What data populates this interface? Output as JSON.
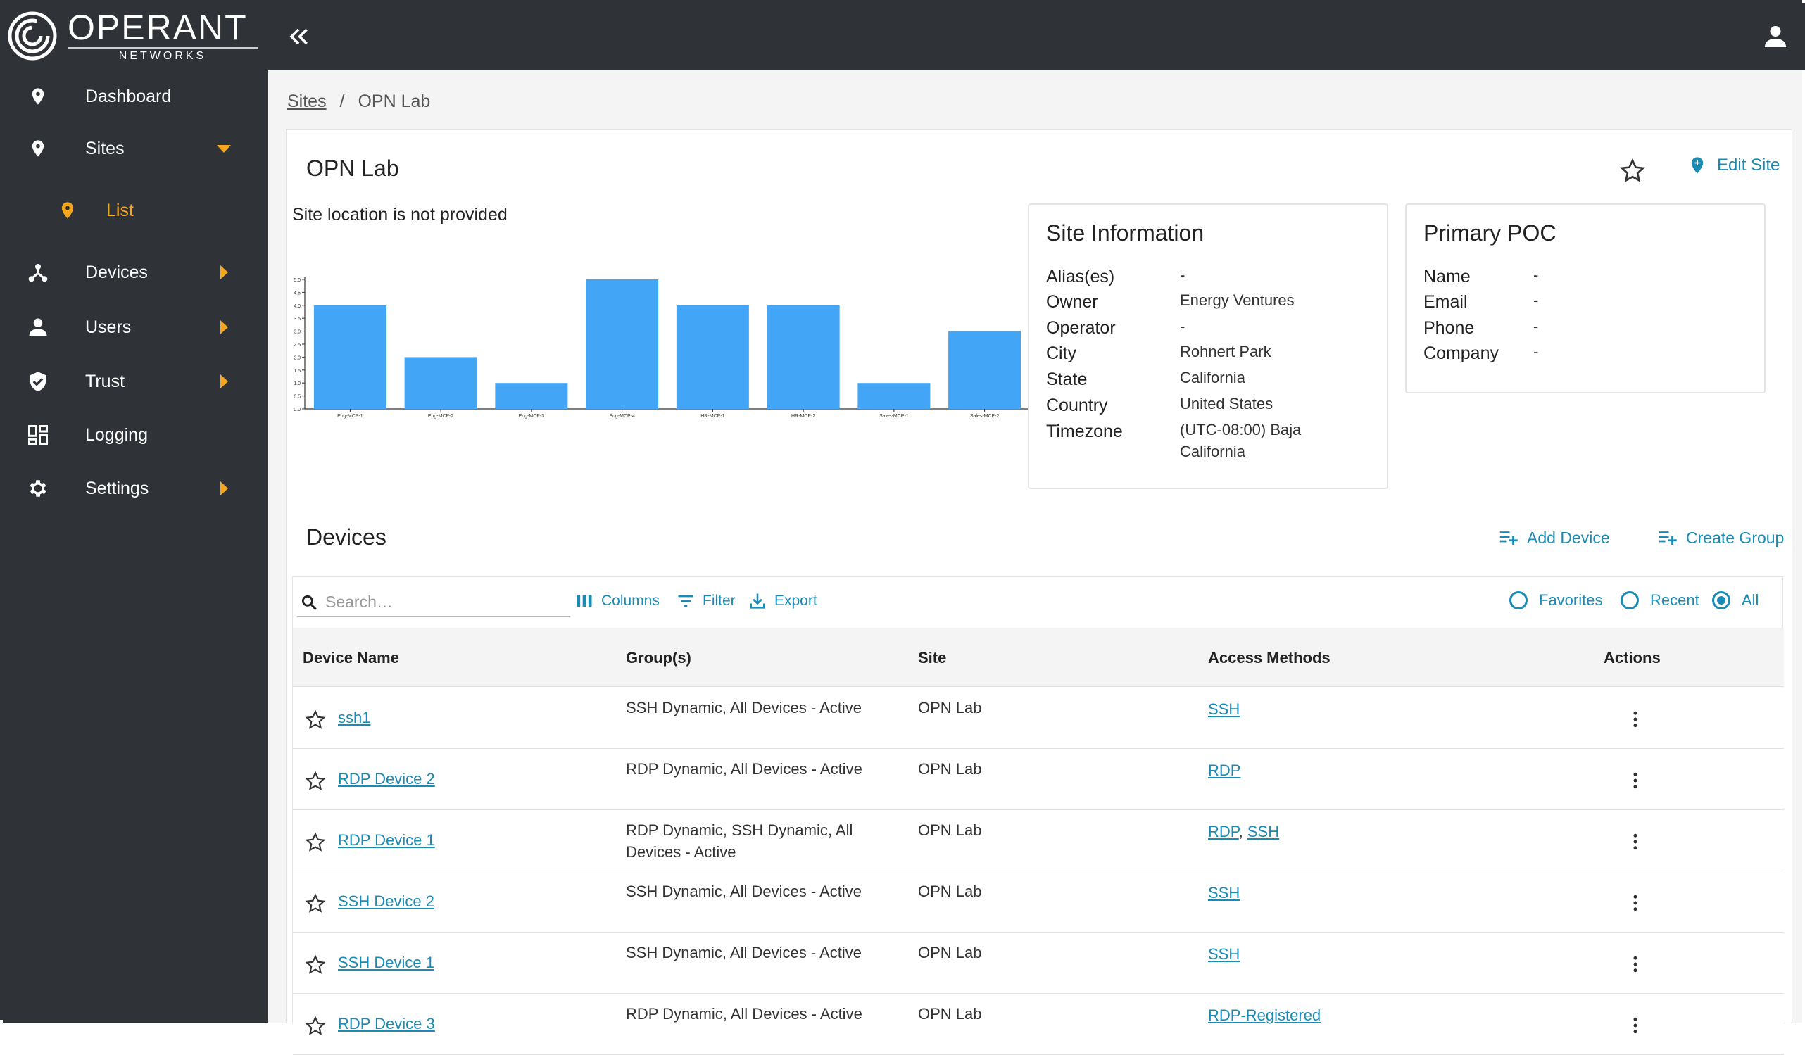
{
  "brand": {
    "name": "OPERANT",
    "sub": "NETWORKS"
  },
  "sidebar": {
    "items": [
      {
        "label": "Dashboard",
        "icon": "map-pin-icon"
      },
      {
        "label": "Sites",
        "icon": "map-pin-icon",
        "expanded": true
      },
      {
        "label": "List",
        "icon": "map-pin-icon",
        "active": true
      },
      {
        "label": "Devices",
        "icon": "network-icon"
      },
      {
        "label": "Users",
        "icon": "person-icon"
      },
      {
        "label": "Trust",
        "icon": "shield-check-icon"
      },
      {
        "label": "Logging",
        "icon": "dashboard-grid-icon"
      },
      {
        "label": "Settings",
        "icon": "gear-icon"
      }
    ]
  },
  "breadcrumb": {
    "parent": "Sites",
    "separator": "/",
    "current": "OPN Lab"
  },
  "site": {
    "title": "OPN Lab",
    "edit_label": "Edit Site",
    "location_note": "Site location is not provided"
  },
  "chart_data": {
    "type": "bar",
    "categories": [
      "Eng-MCP-1",
      "Eng-MCP-2",
      "Eng-MCP-3",
      "Eng-MCP-4",
      "HR-MCP-1",
      "HR-MCP-2",
      "Sales-MCP-1",
      "Sales-MCP-2"
    ],
    "values": [
      4,
      2,
      1,
      5,
      4,
      4,
      1,
      3
    ],
    "ylim": [
      0,
      5
    ],
    "yticks": [
      "0.0",
      "0.5",
      "1.0",
      "1.5",
      "2.0",
      "2.5",
      "3.0",
      "3.5",
      "4.0",
      "4.5",
      "5.0"
    ],
    "color": "#42a5f5"
  },
  "site_info": {
    "title": "Site Information",
    "rows": [
      {
        "label": "Alias(es)",
        "value": "-"
      },
      {
        "label": "Owner",
        "value": "Energy Ventures"
      },
      {
        "label": "Operator",
        "value": "-"
      },
      {
        "label": "City",
        "value": "Rohnert Park"
      },
      {
        "label": "State",
        "value": "California"
      },
      {
        "label": "Country",
        "value": "United States"
      },
      {
        "label": "Timezone",
        "value": "(UTC-08:00) Baja",
        "value2": "California"
      }
    ]
  },
  "poc": {
    "title": "Primary POC",
    "rows": [
      {
        "label": "Name",
        "value": "-"
      },
      {
        "label": "Email",
        "value": "-"
      },
      {
        "label": "Phone",
        "value": "-"
      },
      {
        "label": "Company",
        "value": "-"
      }
    ]
  },
  "devices": {
    "title": "Devices",
    "add_label": "Add Device",
    "group_label": "Create Group",
    "search_placeholder": "Search…",
    "toolbar": {
      "columns": "Columns",
      "filter": "Filter",
      "export": "Export"
    },
    "filters": [
      {
        "label": "Favorites",
        "selected": false
      },
      {
        "label": "Recent",
        "selected": false
      },
      {
        "label": "All",
        "selected": true
      }
    ],
    "columns": [
      "Device Name",
      "Group(s)",
      "Site",
      "Access Methods",
      "Actions"
    ],
    "rows": [
      {
        "name": "ssh1",
        "groups": "SSH Dynamic, All Devices - Active",
        "site": "OPN Lab",
        "access": [
          "SSH"
        ]
      },
      {
        "name": "RDP Device 2",
        "groups": "RDP Dynamic, All Devices - Active",
        "site": "OPN Lab",
        "access": [
          "RDP"
        ]
      },
      {
        "name": "RDP Device 1",
        "groups": "RDP Dynamic, SSH Dynamic, All Devices - Active",
        "site": "OPN Lab",
        "access": [
          "RDP",
          "SSH"
        ]
      },
      {
        "name": "SSH Device 2",
        "groups": "SSH Dynamic, All Devices - Active",
        "site": "OPN Lab",
        "access": [
          "SSH"
        ]
      },
      {
        "name": "SSH Device 1",
        "groups": "SSH Dynamic, All Devices - Active",
        "site": "OPN Lab",
        "access": [
          "SSH"
        ]
      },
      {
        "name": "RDP Device 3",
        "groups": "RDP Dynamic, All Devices - Active",
        "site": "OPN Lab",
        "access": [
          "RDP-Registered"
        ]
      }
    ]
  },
  "colors": {
    "sidebar": "#2f3237",
    "accent": "#1a8bb5",
    "active": "#f4a71d",
    "bar": "#42a5f5"
  }
}
